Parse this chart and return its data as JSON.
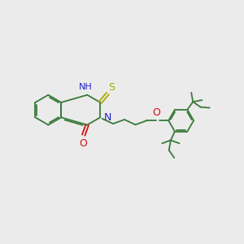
{
  "bg_color": "#ebebeb",
  "bond_color": "#3a7a3a",
  "n_color": "#2222cc",
  "o_color": "#cc1111",
  "s_color": "#aaaa00",
  "lw": 1.3,
  "fs": 8,
  "figsize": [
    3.0,
    3.0
  ],
  "dpi": 100,
  "xlim": [
    0,
    10
  ],
  "ylim": [
    0,
    10
  ]
}
